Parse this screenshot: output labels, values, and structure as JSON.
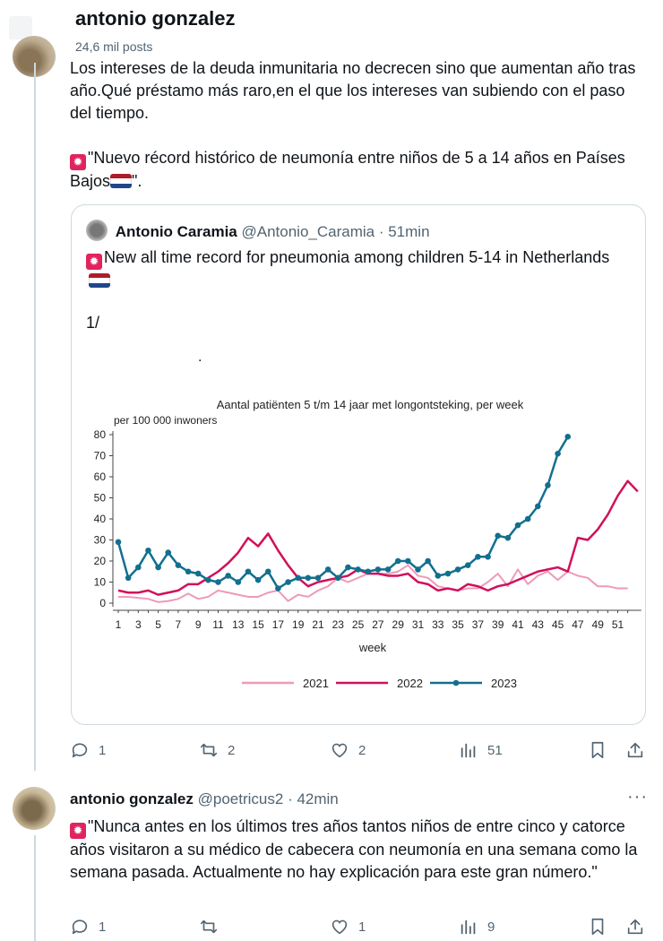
{
  "header": {
    "name": "antonio gonzalez",
    "posts": "24,6 mil posts"
  },
  "post": {
    "paragraph1": "Los intereses de la deuda inmunitaria no decrecen sino que aumentan año tras año.Qué préstamo más raro,en el que los intereses van subiendo con el paso del tiempo.",
    "paragraph2_start": "\"Nuevo récord histórico de neumonía entre niños de 5 a 14 años en Países Bajos",
    "paragraph2_end": "\".",
    "stats": {
      "replies": "1",
      "reposts": "2",
      "likes": "2",
      "views": "51"
    }
  },
  "quote": {
    "name": "Antonio Caramia",
    "handle": "@Antonio_Caramia",
    "time": "· 51min",
    "text": "New all time record for pneumonia among children 5-14 in Netherlands",
    "number": "1/",
    "dot": "."
  },
  "chart_data": {
    "type": "line",
    "title": "Aantal patiënten 5 t/m 14 jaar met longontsteking, per week",
    "ylabel": "per 100 000 inwoners",
    "xlabel": "week",
    "ylim": [
      0,
      80
    ],
    "yticks": [
      0,
      10,
      20,
      30,
      40,
      50,
      60,
      70,
      80
    ],
    "xticks": [
      1,
      3,
      5,
      7,
      9,
      11,
      13,
      15,
      17,
      19,
      21,
      23,
      25,
      27,
      29,
      31,
      33,
      35,
      37,
      39,
      41,
      43,
      45,
      47,
      49,
      51
    ],
    "legend": "bottom",
    "series": [
      {
        "name": "2021",
        "color": "#ee9ab8",
        "values": [
          3,
          3,
          2.5,
          2,
          0.5,
          1,
          2,
          4.5,
          2,
          3,
          6,
          5,
          4,
          3,
          3,
          5,
          6,
          1,
          4,
          3,
          6,
          8,
          12,
          10,
          12,
          14,
          14,
          14,
          15,
          18,
          13,
          12,
          8,
          7,
          6,
          7,
          7,
          10,
          14,
          8,
          16,
          9,
          13,
          15,
          11,
          15,
          13,
          12,
          8,
          8,
          7,
          7
        ]
      },
      {
        "name": "2022",
        "color": "#d1105a",
        "values": [
          6,
          5,
          5,
          6,
          4,
          5,
          6,
          9,
          9,
          12,
          15,
          19,
          24,
          31,
          27,
          33,
          25,
          18,
          12,
          8,
          10,
          11,
          12,
          13,
          16,
          14,
          14,
          13,
          13,
          14,
          10,
          9,
          6,
          7,
          6,
          9,
          8,
          6,
          8,
          9,
          11,
          13,
          15,
          16,
          17,
          15,
          31,
          30,
          35,
          42,
          51,
          58,
          53
        ]
      },
      {
        "name": "2023",
        "color": "#136f8e",
        "values": [
          29,
          12,
          17,
          25,
          17,
          24,
          18,
          15,
          14,
          11,
          10,
          13,
          10,
          15,
          11,
          15,
          7,
          10,
          12,
          12,
          12,
          16,
          12,
          17,
          16,
          15,
          16,
          16,
          20,
          20,
          16,
          20,
          13,
          14,
          16,
          18,
          22,
          22,
          32,
          31,
          37,
          40,
          46,
          56,
          71,
          79
        ]
      }
    ]
  },
  "post2": {
    "name": "antonio gonzalez",
    "handle": "@poetricus2",
    "time": "· 42min",
    "text": "\"Nunca antes en los últimos tres años tantos niños de entre cinco y catorce años visitaron a su médico de cabecera con neumonía en una semana como la semana pasada. Actualmente no hay explicación para este gran número.\"",
    "more": "···",
    "stats": {
      "replies": "1",
      "reposts": "",
      "likes": "1",
      "views": "9"
    }
  },
  "icons": [
    "reply-icon",
    "repost-icon",
    "like-icon",
    "views-icon",
    "bookmark-icon",
    "share-icon",
    "siren-icon",
    "netherlands-flag-icon"
  ]
}
